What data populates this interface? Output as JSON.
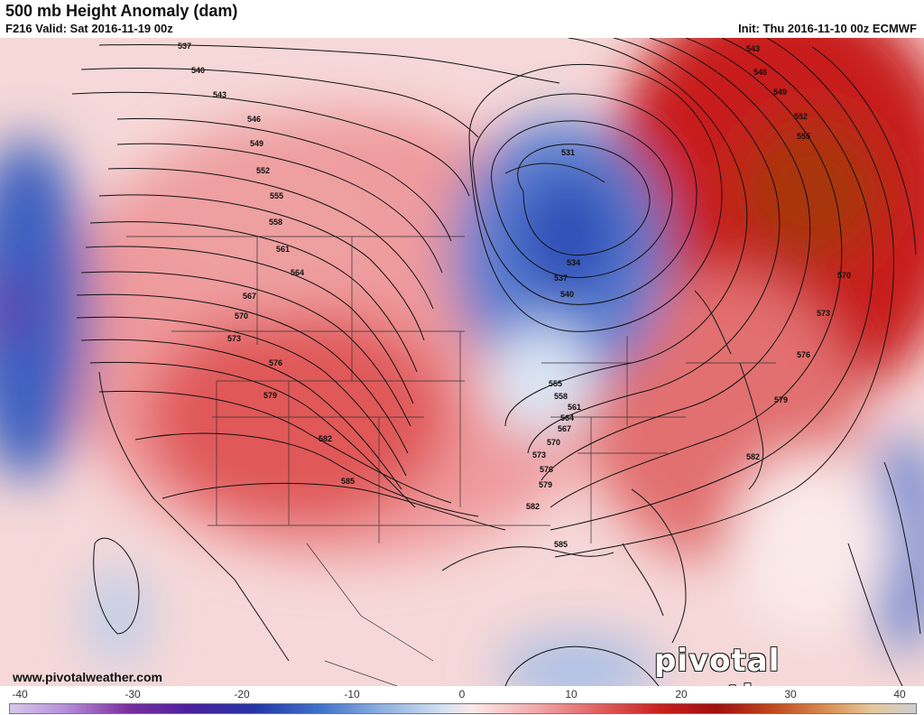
{
  "header": {
    "title": "500 mb Height Anomaly (dam)",
    "valid": "F216 Valid: Sat 2016-11-19 00z",
    "init": "Thu 2016-11-10 00z ECMWF",
    "init_prefix": "Init: "
  },
  "contour_labels": [
    "537",
    "540",
    "543",
    "546",
    "549",
    "552",
    "555",
    "558",
    "561",
    "564",
    "567",
    "570",
    "573",
    "576",
    "579",
    "582",
    "585",
    "531",
    "534",
    "537",
    "540",
    "555",
    "558",
    "561",
    "564",
    "567",
    "570",
    "573",
    "576",
    "579",
    "582",
    "585",
    "543",
    "546",
    "549",
    "552",
    "555",
    "570",
    "573",
    "576",
    "579",
    "582"
  ],
  "colorbar": {
    "ticks": [
      "-40",
      "-30",
      "-20",
      "-10",
      "0",
      "10",
      "20",
      "30",
      "40"
    ],
    "range": [
      -40,
      40
    ]
  },
  "branding": {
    "site": "www.pivotalweather.com",
    "watermark": "pivotal weather"
  },
  "colors": {
    "positive_anomaly": "#c81e1e",
    "negative_anomaly": "#2a4fb8"
  }
}
